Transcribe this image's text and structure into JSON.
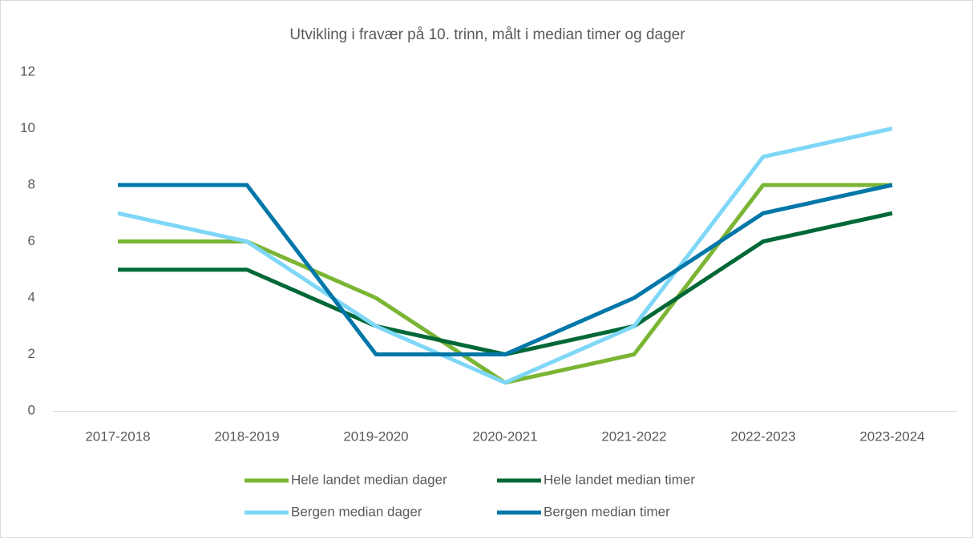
{
  "chart_data": {
    "type": "line",
    "title": "Utvikling i fravær på 10. trinn, målt i median timer og dager",
    "categories": [
      "2017-2018",
      "2018-2019",
      "2019-2020",
      "2020-2021",
      "2021-2022",
      "2022-2023",
      "2023-2024"
    ],
    "series": [
      {
        "name": "Hele landet median dager",
        "color": "#7ab534",
        "values": [
          6,
          6,
          4,
          1,
          2,
          8,
          8
        ]
      },
      {
        "name": "Hele landet median timer",
        "color": "#006837",
        "values": [
          5,
          5,
          3,
          2,
          3,
          6,
          7
        ]
      },
      {
        "name": "Bergen median dager",
        "color": "#7fd7f7",
        "values": [
          7,
          6,
          3,
          1,
          3,
          9,
          10
        ]
      },
      {
        "name": "Bergen median timer",
        "color": "#0077a8",
        "values": [
          8,
          8,
          2,
          2,
          4,
          7,
          8
        ]
      }
    ],
    "ylim": [
      0,
      12
    ],
    "yticks": [
      0,
      2,
      4,
      6,
      8,
      10,
      12
    ],
    "grid": false,
    "legend": "bottom"
  }
}
